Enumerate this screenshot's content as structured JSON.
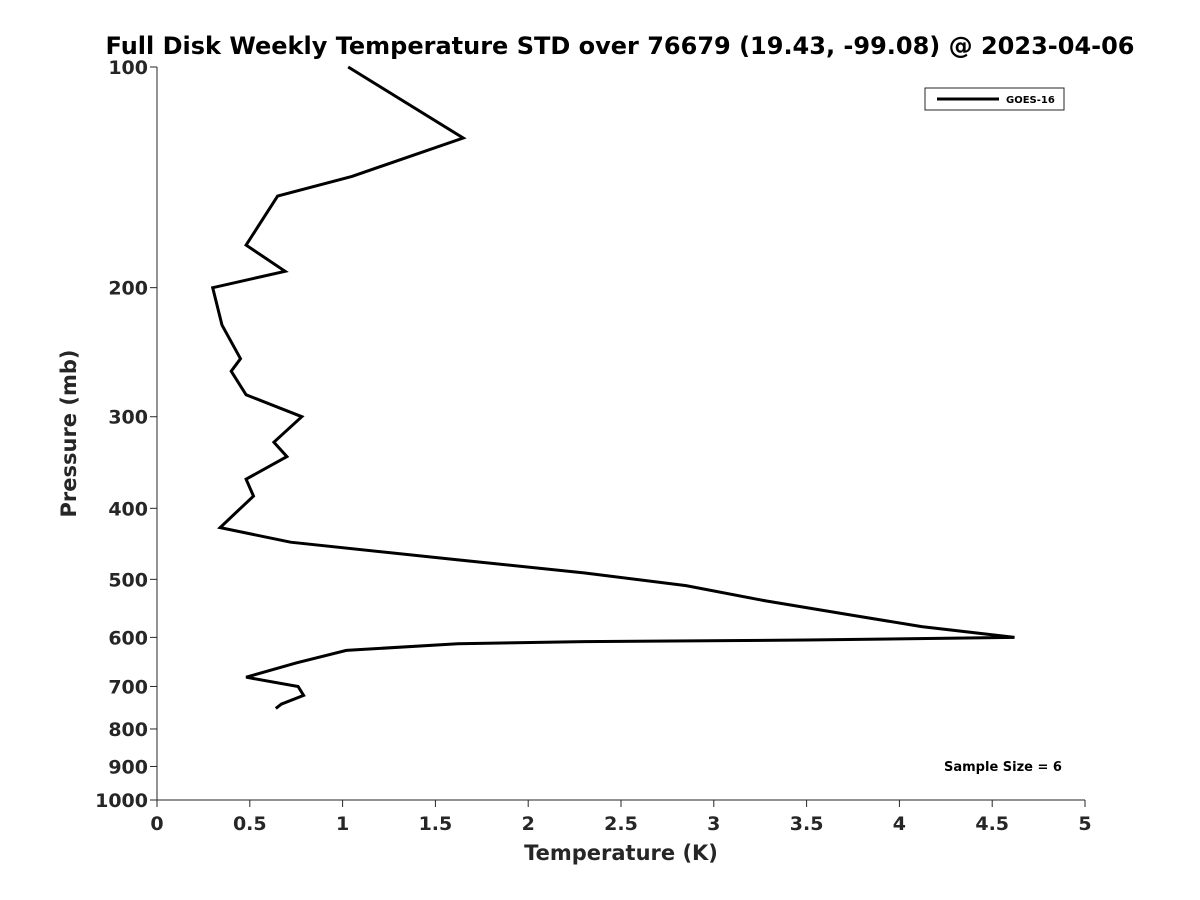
{
  "chart_data": {
    "type": "line",
    "title": "Full Disk Weekly Temperature STD over 76679 (19.43, -99.08) @ 2023-04-06",
    "xlabel": "Temperature (K)",
    "ylabel": "Pressure (mb)",
    "xlim": [
      0,
      5
    ],
    "ylim": [
      100,
      1000
    ],
    "yscale": "log",
    "y_reversed": true,
    "x_ticks": [
      0,
      0.5,
      1,
      1.5,
      2,
      2.5,
      3,
      3.5,
      4,
      4.5,
      5
    ],
    "x_tick_labels": [
      "0",
      "0.5",
      "1",
      "1.5",
      "2",
      "2.5",
      "3",
      "3.5",
      "4",
      "4.5",
      "5"
    ],
    "y_ticks": [
      100,
      200,
      300,
      400,
      500,
      600,
      700,
      800,
      900,
      1000
    ],
    "y_tick_labels": [
      "100",
      "200",
      "300",
      "400",
      "500",
      "600",
      "700",
      "800",
      "900",
      "1000"
    ],
    "grid": false,
    "legend_position": "top-right",
    "series": [
      {
        "name": "GOES-16",
        "color": "#000000",
        "x": [
          1.03,
          1.65,
          1.05,
          0.65,
          0.48,
          0.69,
          0.3,
          0.35,
          0.45,
          0.4,
          0.48,
          0.78,
          0.63,
          0.7,
          0.48,
          0.52,
          0.45,
          0.34,
          0.72,
          1.61,
          2.3,
          2.85,
          3.28,
          3.75,
          4.12,
          4.62,
          3.5,
          2.3,
          1.62,
          1.02,
          0.75,
          0.48,
          0.76,
          0.79,
          0.67,
          0.64
        ],
        "y": [
          100,
          125,
          141,
          150,
          175,
          190,
          200,
          225,
          250,
          260,
          280,
          300,
          325,
          340,
          365,
          385,
          400,
          425,
          445,
          470,
          490,
          510,
          535,
          560,
          580,
          600,
          605,
          608,
          612,
          625,
          650,
          680,
          700,
          720,
          740,
          750
        ]
      }
    ],
    "annotations": [
      "Sample Size = 6"
    ]
  }
}
